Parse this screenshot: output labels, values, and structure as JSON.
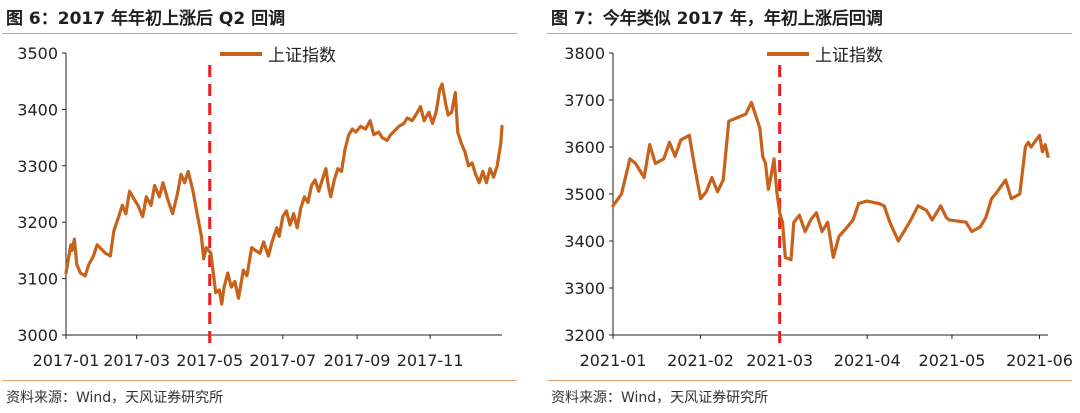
{
  "figures": [
    {
      "title": "图 6：2017 年年初上涨后 Q2 回调",
      "source": "资料来源：Wind，天风证券研究所"
    },
    {
      "title": "图 7：今年类似 2017 年，年初上涨后回调",
      "source": "资料来源：Wind，天风证券研究所"
    }
  ],
  "chart_data": [
    {
      "type": "line",
      "title": "",
      "xlabel": "",
      "ylabel": "",
      "ylim": [
        3000,
        3500
      ],
      "xlim": [
        "2017-01-01",
        "2017-12-31"
      ],
      "yticks": [
        3000,
        3100,
        3200,
        3300,
        3400,
        3500
      ],
      "xticks": [
        "2017-01",
        "2017-03",
        "2017-05",
        "2017-07",
        "2017-09",
        "2017-11"
      ],
      "grid": false,
      "legend": "top-left",
      "vline": {
        "x": "2017-05-01",
        "style": "dashed",
        "color": "#ee1c1c"
      },
      "series": [
        {
          "name": "上证指数",
          "color": "#c8611a",
          "points": [
            [
              "2017-01-01",
              3110
            ],
            [
              "2017-01-03",
              3135
            ],
            [
              "2017-01-05",
              3160
            ],
            [
              "2017-01-06",
              3150
            ],
            [
              "2017-01-08",
              3170
            ],
            [
              "2017-01-10",
              3125
            ],
            [
              "2017-01-13",
              3110
            ],
            [
              "2017-01-17",
              3105
            ],
            [
              "2017-01-20",
              3125
            ],
            [
              "2017-01-24",
              3140
            ],
            [
              "2017-01-27",
              3160
            ],
            [
              "2017-02-03",
              3145
            ],
            [
              "2017-02-07",
              3140
            ],
            [
              "2017-02-10",
              3185
            ],
            [
              "2017-02-14",
              3210
            ],
            [
              "2017-02-17",
              3230
            ],
            [
              "2017-02-20",
              3215
            ],
            [
              "2017-02-23",
              3255
            ],
            [
              "2017-02-27",
              3240
            ],
            [
              "2017-03-02",
              3230
            ],
            [
              "2017-03-06",
              3210
            ],
            [
              "2017-03-09",
              3245
            ],
            [
              "2017-03-13",
              3230
            ],
            [
              "2017-03-16",
              3265
            ],
            [
              "2017-03-20",
              3245
            ],
            [
              "2017-03-23",
              3270
            ],
            [
              "2017-03-27",
              3240
            ],
            [
              "2017-03-31",
              3215
            ],
            [
              "2017-04-04",
              3250
            ],
            [
              "2017-04-07",
              3285
            ],
            [
              "2017-04-10",
              3270
            ],
            [
              "2017-04-13",
              3290
            ],
            [
              "2017-04-17",
              3255
            ],
            [
              "2017-04-20",
              3220
            ],
            [
              "2017-04-24",
              3175
            ],
            [
              "2017-04-26",
              3135
            ],
            [
              "2017-04-28",
              3155
            ],
            [
              "2017-05-02",
              3145
            ],
            [
              "2017-05-04",
              3110
            ],
            [
              "2017-05-06",
              3075
            ],
            [
              "2017-05-09",
              3080
            ],
            [
              "2017-05-11",
              3055
            ],
            [
              "2017-05-13",
              3085
            ],
            [
              "2017-05-16",
              3110
            ],
            [
              "2017-05-19",
              3085
            ],
            [
              "2017-05-22",
              3095
            ],
            [
              "2017-05-25",
              3065
            ],
            [
              "2017-05-29",
              3115
            ],
            [
              "2017-06-01",
              3105
            ],
            [
              "2017-06-05",
              3155
            ],
            [
              "2017-06-08",
              3150
            ],
            [
              "2017-06-12",
              3145
            ],
            [
              "2017-06-15",
              3165
            ],
            [
              "2017-06-19",
              3140
            ],
            [
              "2017-06-22",
              3165
            ],
            [
              "2017-06-26",
              3190
            ],
            [
              "2017-06-28",
              3175
            ],
            [
              "2017-07-01",
              3210
            ],
            [
              "2017-07-04",
              3220
            ],
            [
              "2017-07-07",
              3195
            ],
            [
              "2017-07-10",
              3215
            ],
            [
              "2017-07-13",
              3190
            ],
            [
              "2017-07-16",
              3225
            ],
            [
              "2017-07-19",
              3245
            ],
            [
              "2017-07-22",
              3235
            ],
            [
              "2017-07-25",
              3265
            ],
            [
              "2017-07-28",
              3275
            ],
            [
              "2017-07-31",
              3255
            ],
            [
              "2017-08-03",
              3275
            ],
            [
              "2017-08-06",
              3295
            ],
            [
              "2017-08-08",
              3265
            ],
            [
              "2017-08-10",
              3245
            ],
            [
              "2017-08-13",
              3275
            ],
            [
              "2017-08-16",
              3295
            ],
            [
              "2017-08-19",
              3290
            ],
            [
              "2017-08-22",
              3330
            ],
            [
              "2017-08-25",
              3355
            ],
            [
              "2017-08-28",
              3365
            ],
            [
              "2017-08-31",
              3360
            ],
            [
              "2017-09-04",
              3370
            ],
            [
              "2017-09-08",
              3365
            ],
            [
              "2017-09-12",
              3380
            ],
            [
              "2017-09-15",
              3355
            ],
            [
              "2017-09-19",
              3360
            ],
            [
              "2017-09-22",
              3350
            ],
            [
              "2017-09-26",
              3345
            ],
            [
              "2017-09-29",
              3355
            ],
            [
              "2017-10-06",
              3370
            ],
            [
              "2017-10-10",
              3375
            ],
            [
              "2017-10-13",
              3385
            ],
            [
              "2017-10-17",
              3380
            ],
            [
              "2017-10-20",
              3390
            ],
            [
              "2017-10-24",
              3405
            ],
            [
              "2017-10-27",
              3380
            ],
            [
              "2017-10-31",
              3395
            ],
            [
              "2017-11-03",
              3375
            ],
            [
              "2017-11-06",
              3395
            ],
            [
              "2017-11-09",
              3435
            ],
            [
              "2017-11-11",
              3445
            ],
            [
              "2017-11-14",
              3410
            ],
            [
              "2017-11-16",
              3390
            ],
            [
              "2017-11-19",
              3395
            ],
            [
              "2017-11-22",
              3430
            ],
            [
              "2017-11-24",
              3360
            ],
            [
              "2017-11-27",
              3340
            ],
            [
              "2017-11-30",
              3325
            ],
            [
              "2017-12-03",
              3300
            ],
            [
              "2017-12-06",
              3305
            ],
            [
              "2017-12-09",
              3285
            ],
            [
              "2017-12-12",
              3270
            ],
            [
              "2017-12-15",
              3290
            ],
            [
              "2017-12-18",
              3270
            ],
            [
              "2017-12-21",
              3295
            ],
            [
              "2017-12-24",
              3280
            ],
            [
              "2017-12-27",
              3300
            ],
            [
              "2017-12-30",
              3340
            ],
            [
              "2017-12-31",
              3370
            ]
          ]
        }
      ]
    },
    {
      "type": "line",
      "title": "",
      "xlabel": "",
      "ylabel": "",
      "ylim": [
        3200,
        3800
      ],
      "xlim": [
        "2021-01-01",
        "2021-06-04"
      ],
      "yticks": [
        3200,
        3300,
        3400,
        3500,
        3600,
        3700,
        3800
      ],
      "xticks": [
        "2021-01",
        "2021-02",
        "2021-03",
        "2021-04",
        "2021-05",
        "2021-06"
      ],
      "grid": false,
      "legend": "top-left",
      "vline": {
        "x": "2021-03-01",
        "style": "dashed",
        "color": "#ee1c1c"
      },
      "series": [
        {
          "name": "上证指数",
          "color": "#c8611a",
          "points": [
            [
              "2021-01-01",
              3475
            ],
            [
              "2021-01-04",
              3500
            ],
            [
              "2021-01-07",
              3575
            ],
            [
              "2021-01-09",
              3565
            ],
            [
              "2021-01-12",
              3535
            ],
            [
              "2021-01-14",
              3605
            ],
            [
              "2021-01-16",
              3565
            ],
            [
              "2021-01-19",
              3575
            ],
            [
              "2021-01-21",
              3610
            ],
            [
              "2021-01-23",
              3580
            ],
            [
              "2021-01-25",
              3615
            ],
            [
              "2021-01-28",
              3625
            ],
            [
              "2021-01-30",
              3555
            ],
            [
              "2021-02-01",
              3490
            ],
            [
              "2021-02-03",
              3505
            ],
            [
              "2021-02-05",
              3535
            ],
            [
              "2021-02-07",
              3505
            ],
            [
              "2021-02-09",
              3530
            ],
            [
              "2021-02-11",
              3655
            ],
            [
              "2021-02-17",
              3670
            ],
            [
              "2021-02-19",
              3695
            ],
            [
              "2021-02-22",
              3640
            ],
            [
              "2021-02-23",
              3580
            ],
            [
              "2021-02-24",
              3565
            ],
            [
              "2021-02-25",
              3510
            ],
            [
              "2021-02-26",
              3540
            ],
            [
              "2021-02-27",
              3575
            ],
            [
              "2021-02-28",
              3505
            ],
            [
              "2021-03-01",
              3460
            ],
            [
              "2021-03-02",
              3440
            ],
            [
              "2021-03-03",
              3365
            ],
            [
              "2021-03-05",
              3360
            ],
            [
              "2021-03-06",
              3440
            ],
            [
              "2021-03-08",
              3455
            ],
            [
              "2021-03-10",
              3420
            ],
            [
              "2021-03-12",
              3445
            ],
            [
              "2021-03-14",
              3460
            ],
            [
              "2021-03-16",
              3420
            ],
            [
              "2021-03-18",
              3440
            ],
            [
              "2021-03-20",
              3365
            ],
            [
              "2021-03-22",
              3410
            ],
            [
              "2021-03-25",
              3430
            ],
            [
              "2021-03-27",
              3445
            ],
            [
              "2021-03-29",
              3480
            ],
            [
              "2021-04-01",
              3485
            ],
            [
              "2021-04-05",
              3480
            ],
            [
              "2021-04-07",
              3475
            ],
            [
              "2021-04-09",
              3440
            ],
            [
              "2021-04-12",
              3400
            ],
            [
              "2021-04-14",
              3420
            ],
            [
              "2021-04-16",
              3440
            ],
            [
              "2021-04-19",
              3475
            ],
            [
              "2021-04-22",
              3465
            ],
            [
              "2021-04-24",
              3445
            ],
            [
              "2021-04-27",
              3475
            ],
            [
              "2021-04-29",
              3450
            ],
            [
              "2021-04-30",
              3445
            ],
            [
              "2021-05-06",
              3440
            ],
            [
              "2021-05-08",
              3420
            ],
            [
              "2021-05-11",
              3430
            ],
            [
              "2021-05-13",
              3450
            ],
            [
              "2021-05-15",
              3490
            ],
            [
              "2021-05-17",
              3505
            ],
            [
              "2021-05-20",
              3530
            ],
            [
              "2021-05-22",
              3490
            ],
            [
              "2021-05-25",
              3500
            ],
            [
              "2021-05-27",
              3600
            ],
            [
              "2021-05-28",
              3610
            ],
            [
              "2021-05-29",
              3600
            ],
            [
              "2021-06-01",
              3625
            ],
            [
              "2021-06-02",
              3590
            ],
            [
              "2021-06-03",
              3605
            ],
            [
              "2021-06-04",
              3580
            ]
          ]
        }
      ]
    }
  ]
}
